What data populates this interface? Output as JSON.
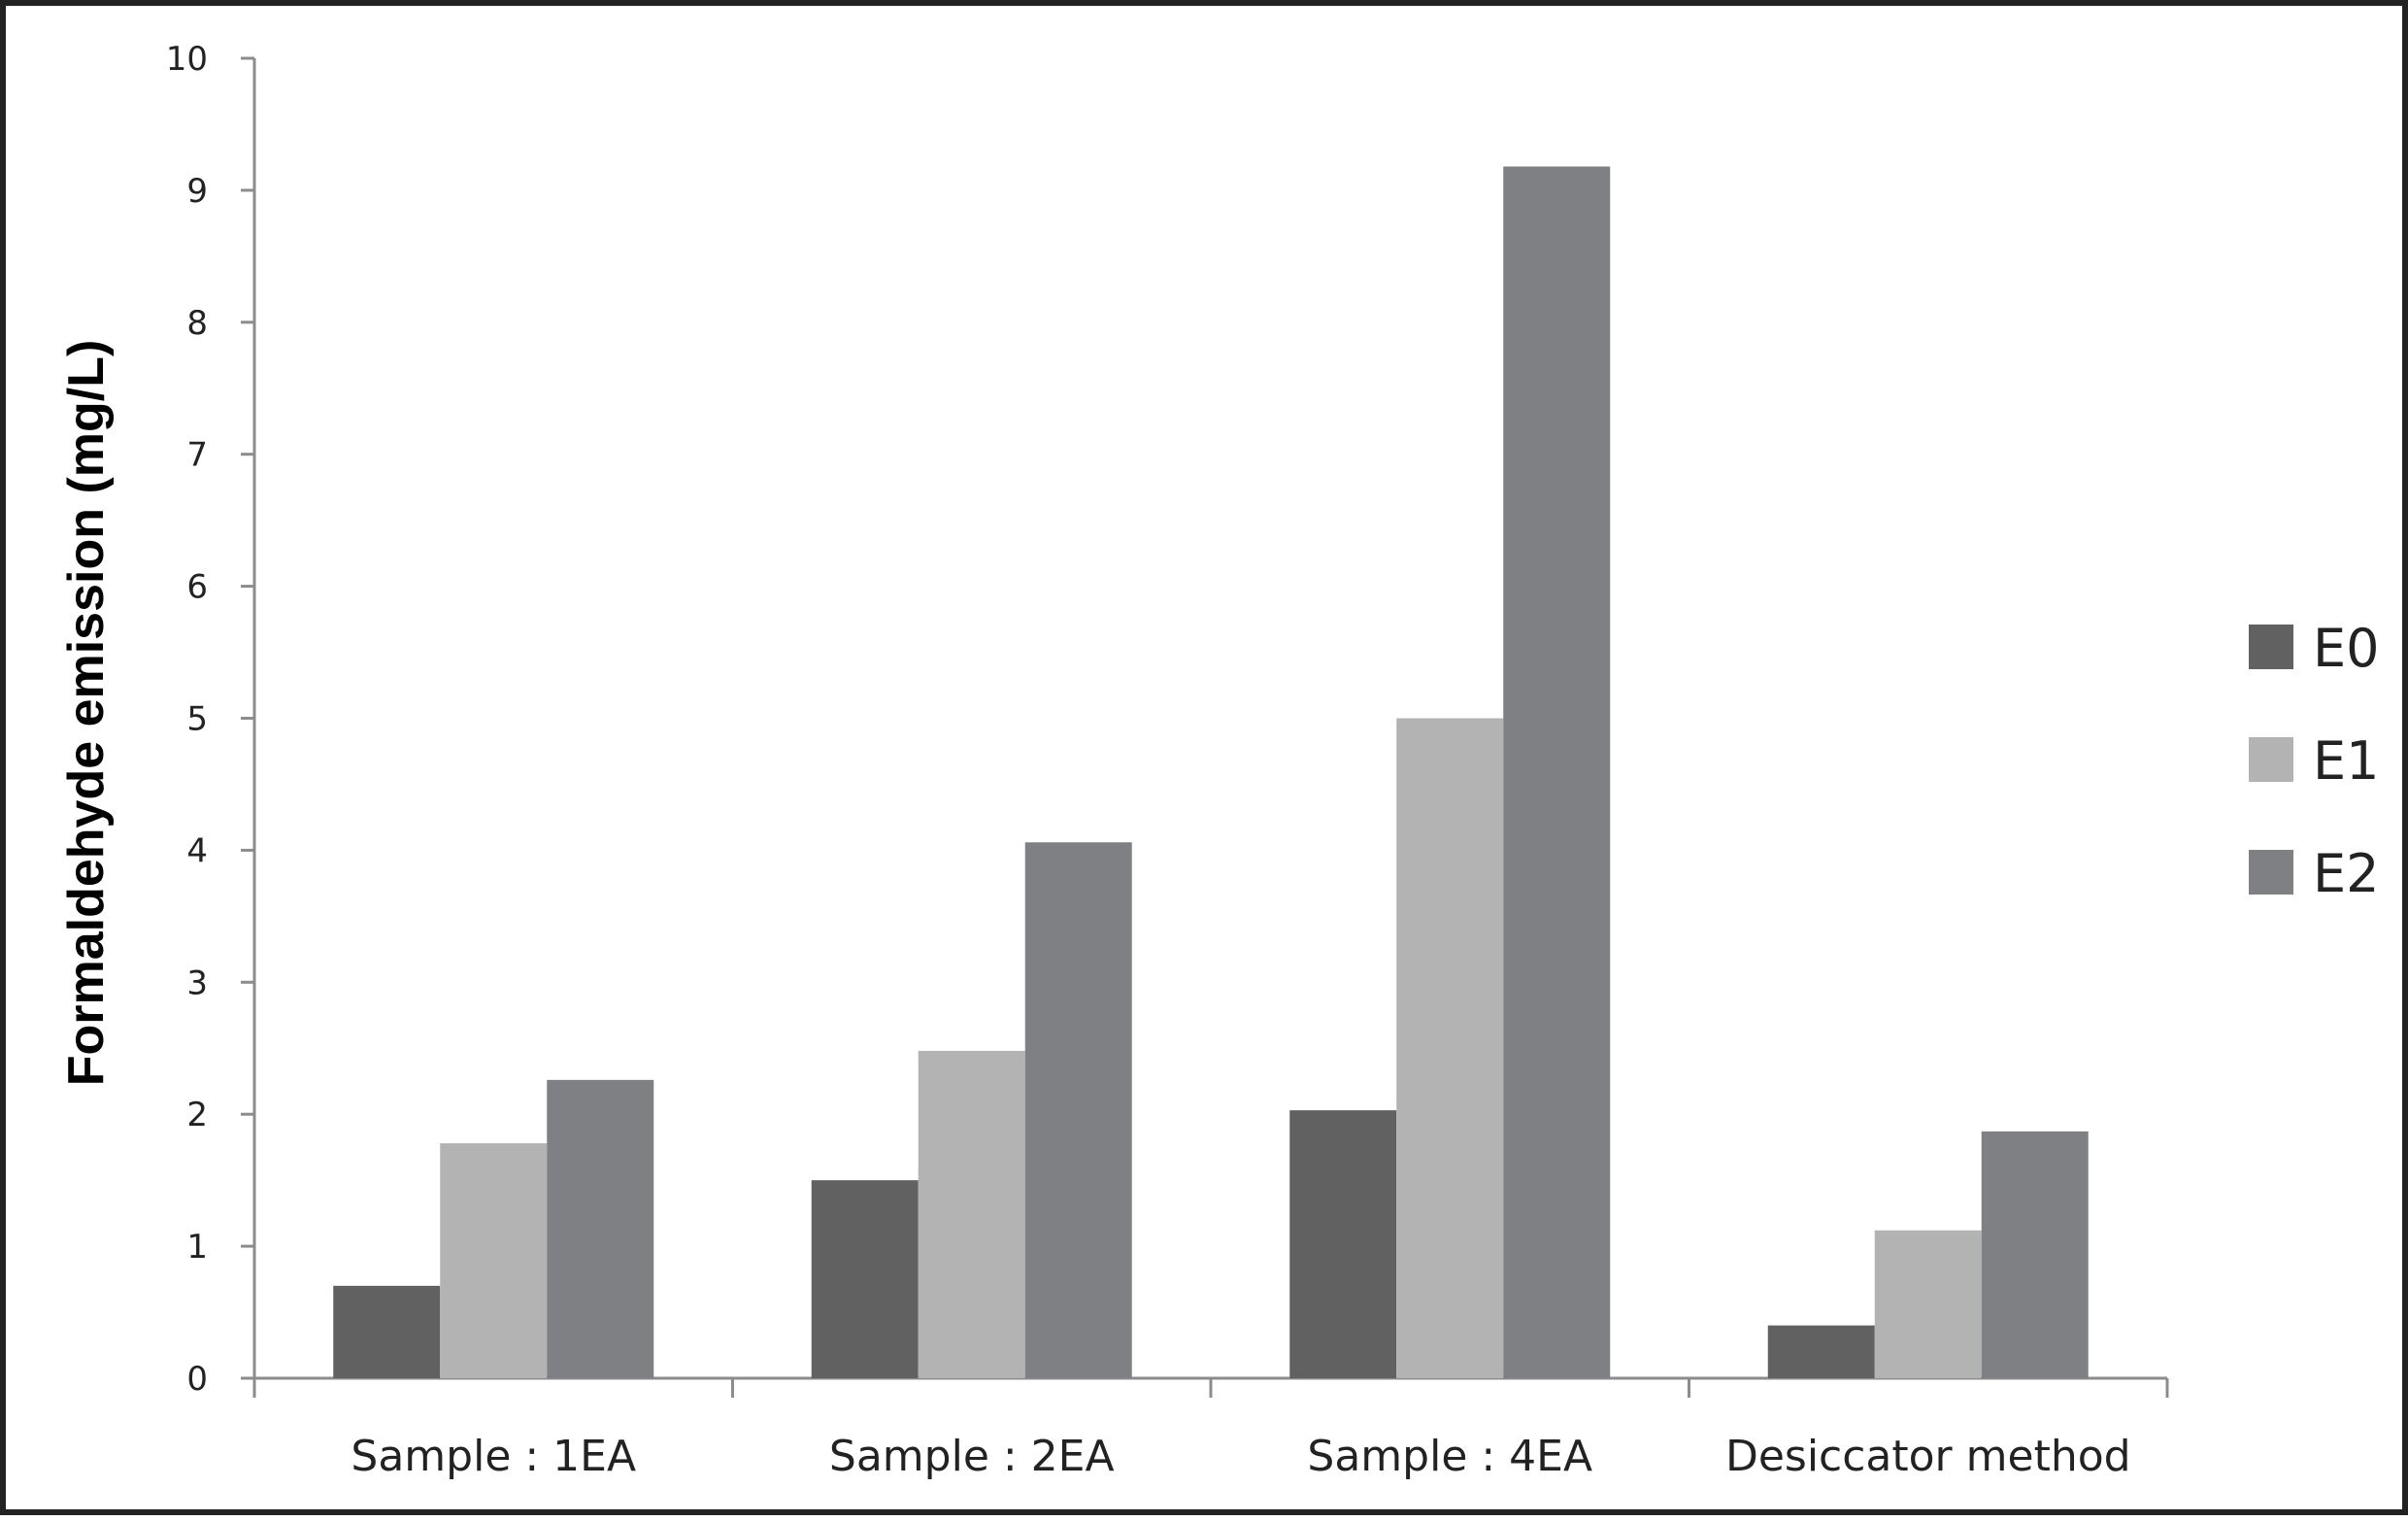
{
  "chart_data": {
    "type": "bar",
    "title": "",
    "xlabel": "",
    "ylabel": "Formaldehyde emission (mg/L)",
    "ylim": [
      0,
      10
    ],
    "yticks": [
      0,
      1,
      2,
      3,
      4,
      5,
      6,
      7,
      8,
      9,
      10
    ],
    "grid": false,
    "legend_position": "right",
    "categories": [
      "Sample : 1EA",
      "Sample : 2EA",
      "Sample : 4EA",
      "Desiccator method"
    ],
    "series": [
      {
        "name": "E0",
        "color": "#616161",
        "values": [
          0.7,
          1.5,
          2.03,
          0.4
        ]
      },
      {
        "name": "E1",
        "color": "#b3b3b3",
        "values": [
          1.78,
          2.48,
          5.0,
          1.12
        ]
      },
      {
        "name": "E2",
        "color": "#7f8083",
        "values": [
          2.26,
          4.06,
          9.18,
          1.87
        ]
      }
    ]
  }
}
